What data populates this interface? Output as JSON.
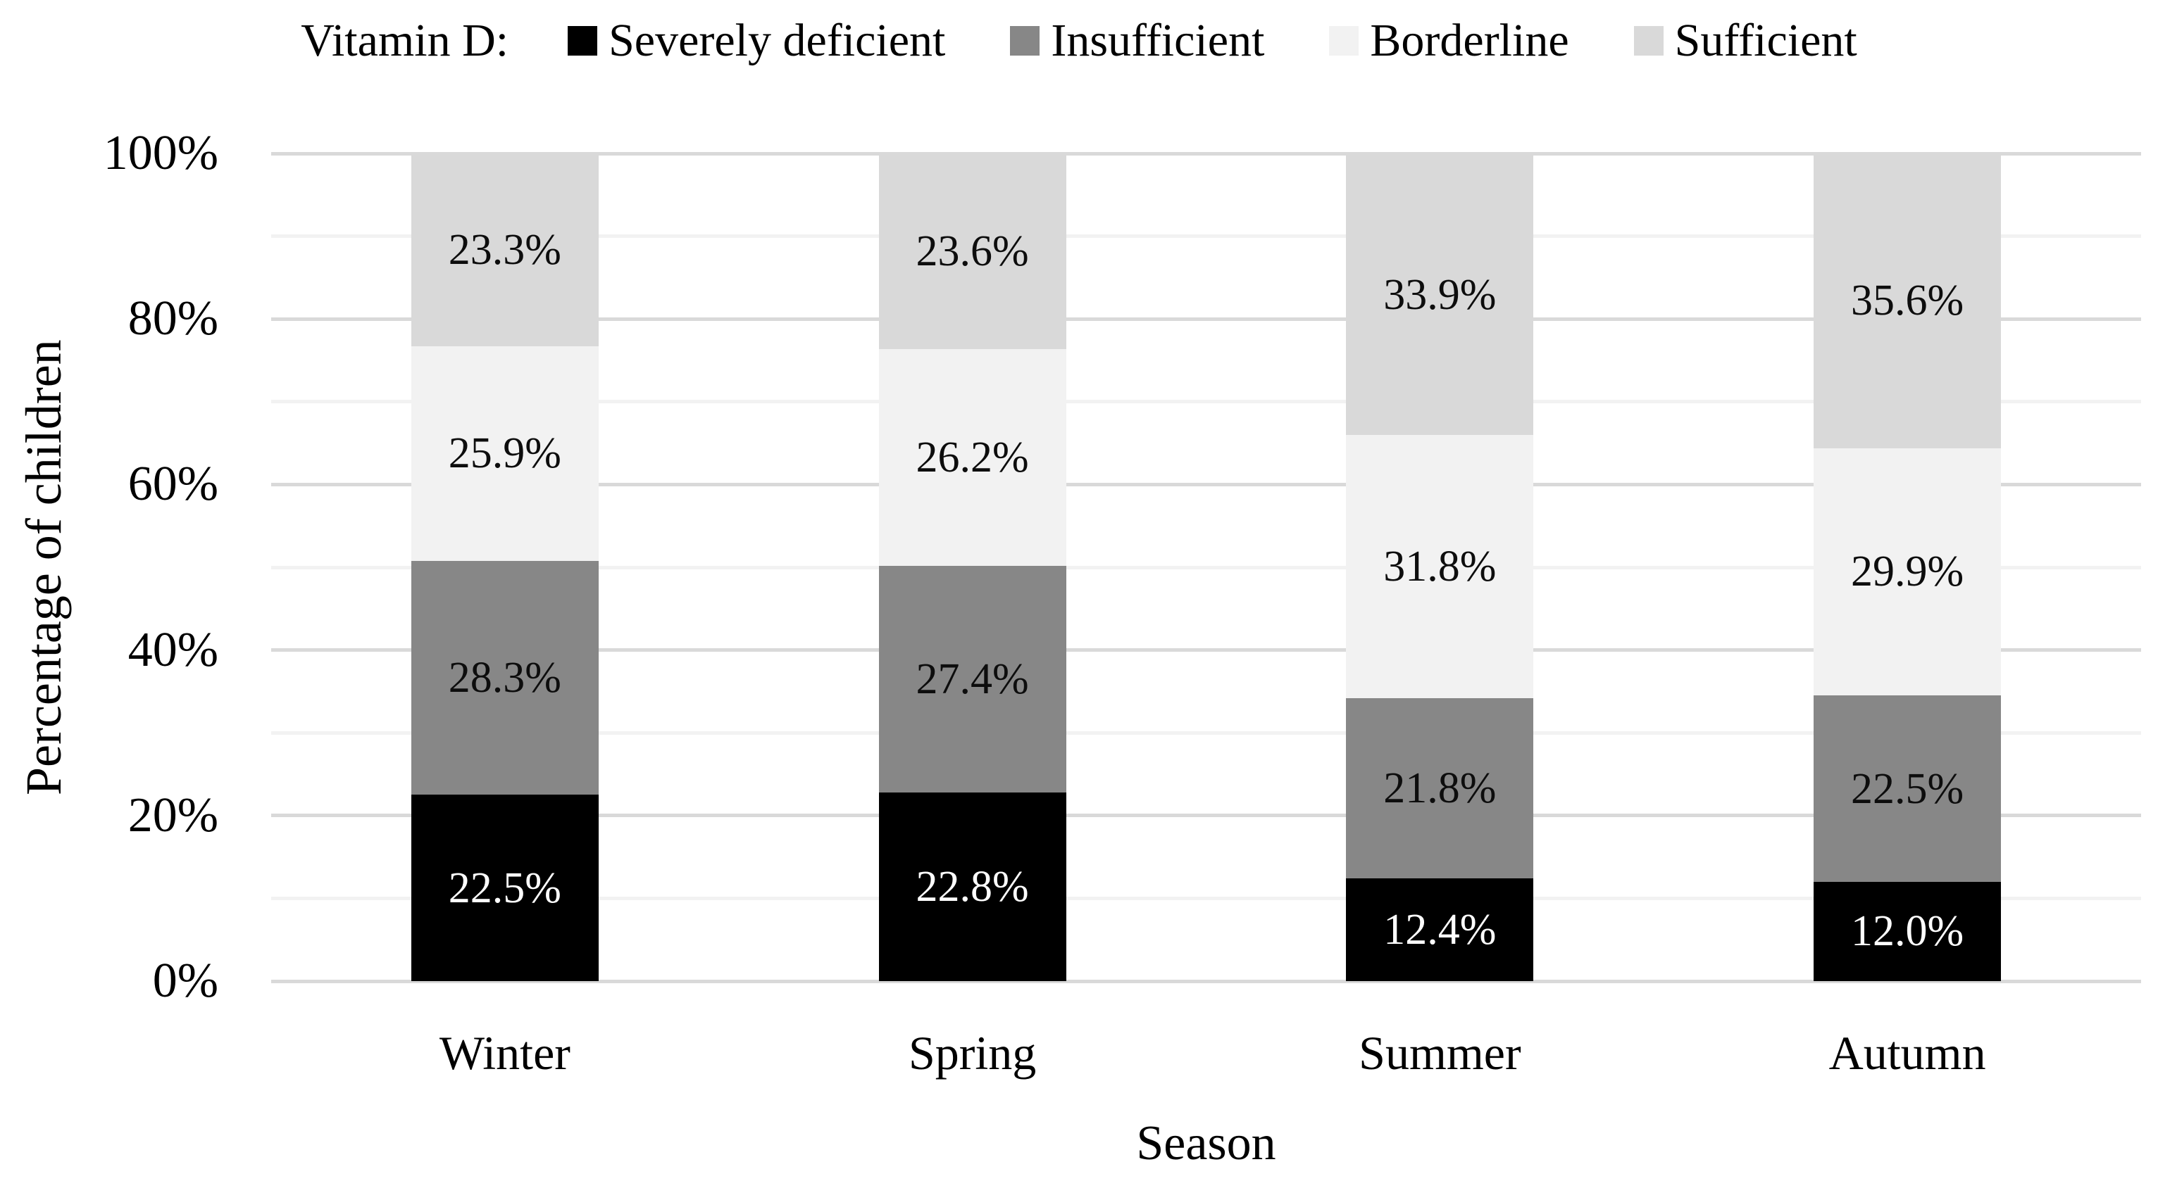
{
  "legend": {
    "title": "Vitamin D:"
  },
  "axes": {
    "ylabel": "Percentage of children",
    "xlabel": "Season"
  },
  "chart_data": {
    "type": "bar",
    "stacked": true,
    "title": "",
    "xlabel": "Season",
    "ylabel": "Percentage of children",
    "categories": [
      "Winter",
      "Spring",
      "Summer",
      "Autumn"
    ],
    "series": [
      {
        "name": "Severely deficient",
        "color": "#000000",
        "label_color": "#ffffff",
        "values": [
          22.5,
          22.8,
          12.4,
          12.0
        ]
      },
      {
        "name": "Insufficient",
        "color": "#878787",
        "label_color": "#0d0d0d",
        "values": [
          28.3,
          27.4,
          21.8,
          22.5
        ]
      },
      {
        "name": "Borderline",
        "color": "#f2f2f2",
        "label_color": "#0d0d0d",
        "values": [
          25.9,
          26.2,
          31.8,
          29.9
        ]
      },
      {
        "name": "Sufficient",
        "color": "#d9d9d9",
        "label_color": "#0d0d0d",
        "values": [
          23.3,
          23.6,
          33.9,
          35.6
        ]
      }
    ],
    "value_suffix": "%",
    "ylim": [
      0,
      100
    ],
    "y_ticks": [
      {
        "label": "0%",
        "value": 0
      },
      {
        "label": "20%",
        "value": 20
      },
      {
        "label": "40%",
        "value": 40
      },
      {
        "label": "60%",
        "value": 60
      },
      {
        "label": "80%",
        "value": 80
      },
      {
        "label": "100%",
        "value": 100
      }
    ],
    "gridlines": {
      "minor_step": 10,
      "major_step": 20,
      "major_color": "#d9d9d9",
      "minor_color": "#f2f2f2"
    },
    "legend_position": "top"
  }
}
